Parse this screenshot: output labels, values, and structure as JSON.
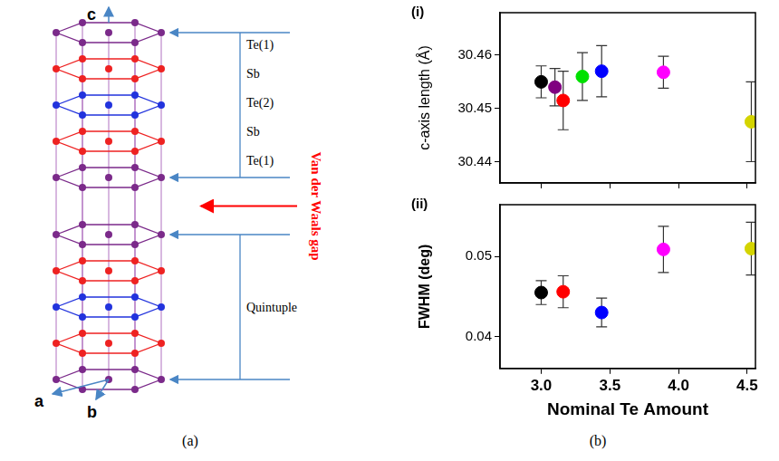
{
  "diagram": {
    "axes": [
      "c",
      "a",
      "b"
    ],
    "layer_labels": [
      "Te(1)",
      "Sb",
      "Te(2)",
      "Sb",
      "Te(1)"
    ],
    "gap_label": "Van der Waals gap",
    "block_label": "Quintuple"
  },
  "captions": [
    "(a)",
    "(b)"
  ],
  "chart_data": [
    {
      "type": "scatter",
      "panel_label": "(i)",
      "y_label": "c-axis length (Å)",
      "x": [
        3.0,
        3.1,
        3.16,
        3.3,
        3.44,
        3.89,
        4.53
      ],
      "values": [
        30.455,
        30.454,
        30.4515,
        30.456,
        30.457,
        30.4568,
        30.4475
      ],
      "errors": [
        0.003,
        0.0035,
        0.0055,
        0.0045,
        0.0048,
        0.003,
        0.0075
      ],
      "colors": [
        "#000000",
        "#800080",
        "#ff0000",
        "#00e000",
        "#0000ff",
        "#ff00ff",
        "#d4d400"
      ],
      "marker": "circle",
      "xlim": [
        2.7,
        4.56
      ],
      "xticks": [
        {
          "value": 3.0,
          "label": "3.0"
        },
        3.5,
        {
          "value": 4.0,
          "label": "4.0"
        },
        4.5
      ],
      "ylim": [
        30.436,
        30.468
      ],
      "yticks": [
        30.44,
        30.45,
        30.46
      ],
      "tick_labels": "y",
      "grid": false
    },
    {
      "type": "scatter",
      "panel_label": "(ii)",
      "y_label": "FWHM (deg)",
      "x_label": "Nominal Te Amount",
      "x": [
        3.0,
        3.16,
        3.44,
        3.89,
        4.53
      ],
      "values": [
        0.0455,
        0.0456,
        0.043,
        0.0509,
        0.051
      ],
      "errors": [
        0.0015,
        0.002,
        0.0018,
        0.0029,
        0.0033
      ],
      "colors": [
        "#000000",
        "#ff0000",
        "#0000ff",
        "#ff00ff",
        "#d4d400"
      ],
      "marker": "circle",
      "xlim": [
        2.7,
        4.56
      ],
      "xticks": [
        {
          "value": 3.0,
          "label": "3.0"
        },
        3.5,
        {
          "value": 4.0,
          "label": "4.0"
        },
        4.5
      ],
      "ylim": [
        0.036,
        0.0565
      ],
      "yticks": [
        0.04,
        0.05
      ],
      "grid": false
    }
  ]
}
